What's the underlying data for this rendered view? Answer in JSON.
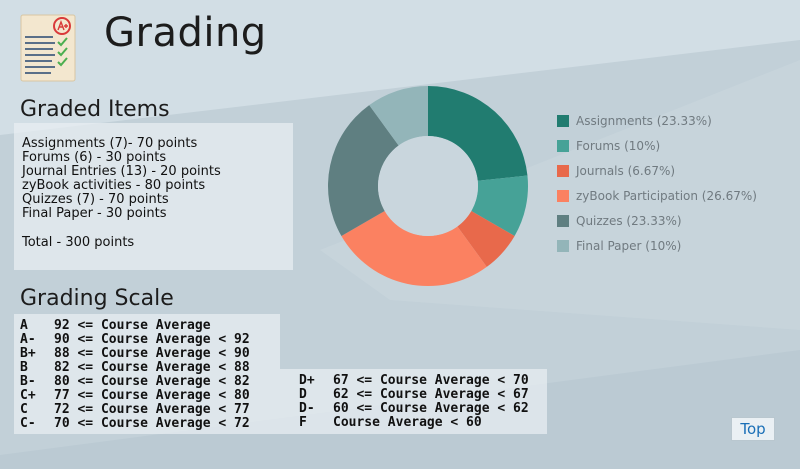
{
  "page": {
    "title": "Grading",
    "logo_icon": "graded-paper-a-plus-icon"
  },
  "graded_items": {
    "title": "Graded Items",
    "items": [
      "Assignments (7)- 70 points",
      "Forums (6) - 30 points",
      "Journal Entries (13) - 20 points",
      "zyBook activities - 80 points",
      "Quizzes (7) - 70 points",
      "Final Paper - 30 points"
    ],
    "total": "Total - 300 points"
  },
  "grading_scale": {
    "title": "Grading Scale",
    "left": [
      {
        "grade": "A",
        "rule": "92 <= Course Average"
      },
      {
        "grade": "A-",
        "rule": "90 <= Course Average < 92"
      },
      {
        "grade": "B+",
        "rule": "88 <= Course Average < 90"
      },
      {
        "grade": "B",
        "rule": "82 <= Course Average < 88"
      },
      {
        "grade": "B-",
        "rule": "80 <= Course Average < 82"
      },
      {
        "grade": "C+",
        "rule": "77 <= Course Average < 80"
      },
      {
        "grade": "C",
        "rule": "72 <= Course Average < 77"
      },
      {
        "grade": "C-",
        "rule": "70 <= Course Average < 72"
      }
    ],
    "right": [
      {
        "grade": "D+",
        "rule": "67 <= Course Average < 70"
      },
      {
        "grade": "D",
        "rule": "62 <= Course Average < 67"
      },
      {
        "grade": "D-",
        "rule": "60 <= Course Average < 62"
      },
      {
        "grade": "F",
        "rule": "Course Average < 60"
      }
    ]
  },
  "chart_data": {
    "type": "pie",
    "donut": true,
    "legend_position": "right",
    "slices": [
      {
        "label": "Assignments (23.33%)",
        "value": 23.33,
        "color": "#217c70"
      },
      {
        "label": "Forums (10%)",
        "value": 10,
        "color": "#46a297"
      },
      {
        "label": "Journals (6.67%)",
        "value": 6.67,
        "color": "#e8694b"
      },
      {
        "label": "zyBook Participation (26.67%)",
        "value": 26.67,
        "color": "#fb8161"
      },
      {
        "label": "Quizzes (23.33%)",
        "value": 23.33,
        "color": "#5f7f81"
      },
      {
        "label": "Final Paper (10%)",
        "value": 10,
        "color": "#93b5b9"
      }
    ]
  },
  "nav": {
    "top_label": "Top"
  }
}
